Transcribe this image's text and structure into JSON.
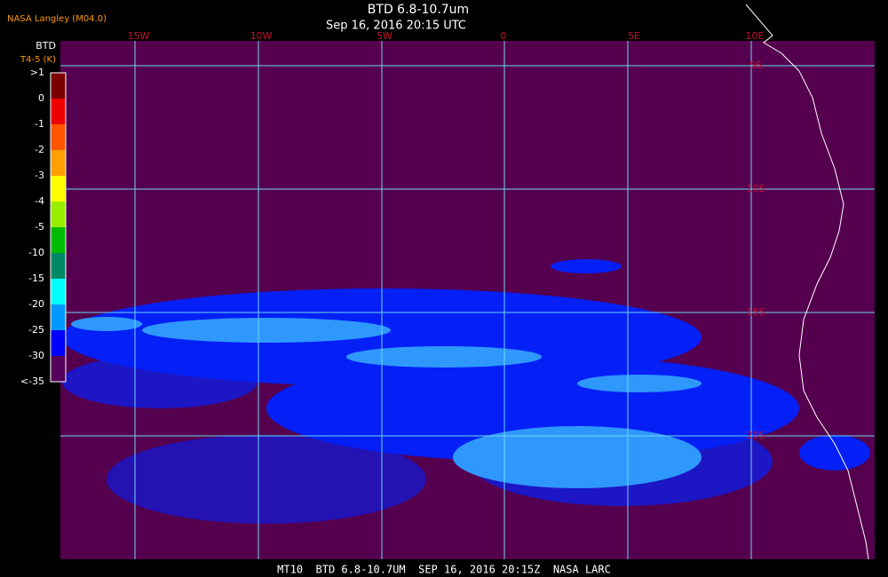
{
  "header": {
    "agency": "NASA Langley (M04.0)",
    "title": "BTD 6.8-10.7um",
    "subtitle": "Sep 16, 2016 20:15 UTC"
  },
  "colorbar": {
    "title": "BTD",
    "units": "T4-5 (K)",
    "labels": [
      ">1",
      "0",
      "-1",
      "-2",
      "-3",
      "-4",
      "-5",
      "-10",
      "-15",
      "-20",
      "-25",
      "-30",
      "<-35"
    ],
    "colors": [
      "#7a0000",
      "#ee0000",
      "#ff5500",
      "#ffa000",
      "#ffff00",
      "#99ee00",
      "#00bb00",
      "#008866",
      "#00ffff",
      "#0099ff",
      "#0000ff",
      "#55005a"
    ]
  },
  "map": {
    "longitude_labels": [
      "15W",
      "10W",
      "5W",
      "0",
      "5E",
      "10E"
    ],
    "latitude_labels": [
      "5S",
      "10S",
      "15S",
      "20S"
    ]
  },
  "footer": "MT10  BTD 6.8-10.7UM  SEP 16, 2016 20:15Z  NASA LARC"
}
